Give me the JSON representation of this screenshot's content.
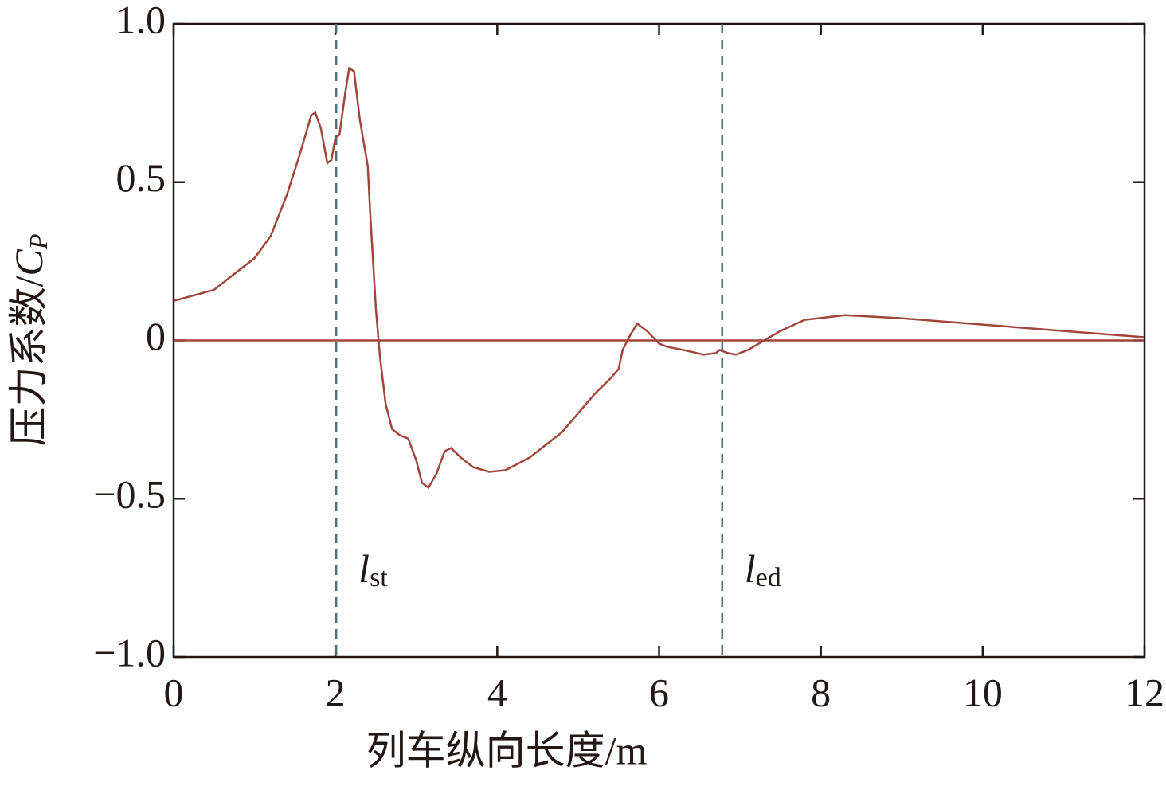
{
  "chart_data": {
    "type": "line",
    "xlabel": "列车纵向长度/m",
    "ylabel": "压力系数/",
    "ylabel_symbol": "C",
    "ylabel_subscript": "P",
    "x": [
      0,
      0.5,
      1.0,
      1.2,
      1.4,
      1.55,
      1.7,
      1.75,
      1.82,
      1.9,
      1.95,
      2.0,
      2.05,
      2.12,
      2.17,
      2.23,
      2.3,
      2.4,
      2.43,
      2.5,
      2.55,
      2.62,
      2.7,
      2.8,
      2.9,
      3.0,
      3.07,
      3.15,
      3.25,
      3.35,
      3.43,
      3.55,
      3.7,
      3.9,
      4.1,
      4.4,
      4.8,
      5.2,
      5.4,
      5.5,
      5.55,
      5.65,
      5.73,
      5.85,
      6.0,
      6.1,
      6.3,
      6.55,
      6.7,
      6.75,
      6.85,
      6.95,
      7.1,
      7.3,
      7.5,
      7.8,
      8.3,
      9.0,
      10.0,
      11.0,
      12.0
    ],
    "series": [
      {
        "color": "#a0453a",
        "values": [
          0.125,
          0.16,
          0.26,
          0.33,
          0.46,
          0.58,
          0.71,
          0.72,
          0.67,
          0.56,
          0.57,
          0.64,
          0.65,
          0.78,
          0.86,
          0.85,
          0.7,
          0.55,
          0.4,
          0.1,
          -0.05,
          -0.2,
          -0.28,
          -0.3,
          -0.31,
          -0.38,
          -0.45,
          -0.465,
          -0.42,
          -0.35,
          -0.34,
          -0.37,
          -0.4,
          -0.415,
          -0.41,
          -0.37,
          -0.29,
          -0.17,
          -0.12,
          -0.09,
          -0.03,
          0.02,
          0.053,
          0.03,
          -0.01,
          -0.02,
          -0.03,
          -0.045,
          -0.04,
          -0.03,
          -0.04,
          -0.045,
          -0.03,
          0.0,
          0.03,
          0.065,
          0.08,
          0.07,
          0.05,
          0.03,
          0.01
        ]
      }
    ],
    "xlim": [
      0,
      12
    ],
    "xticks": [
      0,
      2,
      4,
      6,
      8,
      10,
      12
    ],
    "ylim": [
      -1,
      1
    ],
    "yticks": [
      {
        "value": -1,
        "label": "−1.0"
      },
      {
        "value": -0.5,
        "label": "−0.5"
      },
      0,
      0.5,
      {
        "value": 1,
        "label": "1.0"
      }
    ],
    "reference_line": {
      "y": 0,
      "color": "#a0453a"
    },
    "markers": [
      {
        "x": 2.01,
        "symbol": "l",
        "subscript": "st"
      },
      {
        "x": 6.78,
        "symbol": "l",
        "subscript": "ed"
      }
    ],
    "marker_color": "#4f6e7a"
  }
}
